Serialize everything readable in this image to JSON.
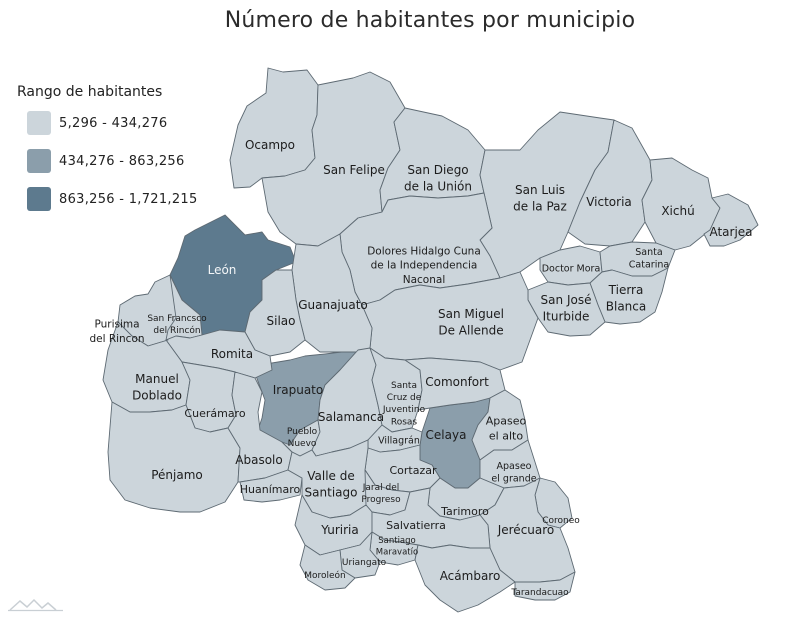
{
  "title": "Número de habitantes por municipio",
  "legend": {
    "title": "Rango de habitantes",
    "items": [
      {
        "label": "5,296 - 434,276",
        "color": "#ccd5db"
      },
      {
        "label": "434,276 - 863,256",
        "color": "#8b9eab"
      },
      {
        "label": "863,256 - 1,721,215",
        "color": "#5d7a8e"
      }
    ]
  },
  "colors": {
    "stroke": "#5e6a73",
    "background": "#ffffff"
  },
  "chart_data": {
    "type": "choropleth",
    "legend_placement": "top-left",
    "classes": [
      "5,296 - 434,276",
      "434,276 - 863,256",
      "863,256 - 1,721,215"
    ],
    "regions": [
      {
        "name": "León",
        "label": "León",
        "class": 2
      },
      {
        "name": "Irapuato",
        "label": "Irapuato",
        "class": 1
      },
      {
        "name": "Celaya",
        "label": "Celaya",
        "class": 1
      },
      {
        "name": "Ocampo",
        "label": "Ocampo",
        "class": 0
      },
      {
        "name": "San Felipe",
        "label": "San Felipe",
        "class": 0
      },
      {
        "name": "San Diego de la Unión",
        "label": "San Diego\nde la Unión",
        "class": 0
      },
      {
        "name": "San Luis de la Paz",
        "label": "San Luis\nde la Paz",
        "class": 0
      },
      {
        "name": "Victoria",
        "label": "Victoria",
        "class": 0
      },
      {
        "name": "Xichú",
        "label": "Xichú",
        "class": 0
      },
      {
        "name": "Atarjea",
        "label": "Atarjea",
        "class": 0
      },
      {
        "name": "Dolores Hidalgo Cuna de la Independencia Nacional",
        "label": "Dolores Hidalgo Cuna\nde la Independencia\nNaconal",
        "class": 0
      },
      {
        "name": "Doctor Mora",
        "label": "Doctor Mora",
        "class": 0
      },
      {
        "name": "Santa Catarina",
        "label": "Santa\nCatarina",
        "class": 0
      },
      {
        "name": "Tierra Blanca",
        "label": "Tierra\nBlanca",
        "class": 0
      },
      {
        "name": "San José Iturbide",
        "label": "San José\nIturbide",
        "class": 0
      },
      {
        "name": "San Miguel De Allende",
        "label": "San Miguel\nDe Allende",
        "class": 0
      },
      {
        "name": "Guanajuato",
        "label": "Guanajuato",
        "class": 0
      },
      {
        "name": "Silao",
        "label": "Silao",
        "class": 0
      },
      {
        "name": "Purísima del Rincon",
        "label": "Purisima\ndel Rincon",
        "class": 0
      },
      {
        "name": "San Francisco del Rincón",
        "label": "San Francsco\ndel Rincón",
        "class": 0
      },
      {
        "name": "Romita",
        "label": "Romita",
        "class": 0
      },
      {
        "name": "Manuel Doblado",
        "label": "Manuel\nDoblado",
        "class": 0
      },
      {
        "name": "Cuerámaro",
        "label": "Cuerámaro",
        "class": 0
      },
      {
        "name": "Pénjamo",
        "label": "Pénjamo",
        "class": 0
      },
      {
        "name": "Abasolo",
        "label": "Abasolo",
        "class": 0
      },
      {
        "name": "Huanímaro",
        "label": "Huanímaro",
        "class": 0
      },
      {
        "name": "Pueblo Nuevo",
        "label": "Pueblo\nNuevo",
        "class": 0
      },
      {
        "name": "Salamanca",
        "label": "Salamanca",
        "class": 0
      },
      {
        "name": "Santa Cruz de Juventino Rosas",
        "label": "Santa\nCruz de\nJuventino\nRosas",
        "class": 0
      },
      {
        "name": "Comonfort",
        "label": "Comonfort",
        "class": 0
      },
      {
        "name": "Villagrán",
        "label": "Villagrán",
        "class": 0
      },
      {
        "name": "Apaseo el alto",
        "label": "Apaseo\nel alto",
        "class": 0
      },
      {
        "name": "Apaseo el grande",
        "label": "Apaseo\nel grande",
        "class": 0
      },
      {
        "name": "Cortazar",
        "label": "Cortazar",
        "class": 0
      },
      {
        "name": "Valle de Santiago",
        "label": "Valle de\nSantiago",
        "class": 0
      },
      {
        "name": "Jaral del Progreso",
        "label": "Jaral del\nProgreso",
        "class": 0
      },
      {
        "name": "Tarimoro",
        "label": "Tarimoro",
        "class": 0
      },
      {
        "name": "Coroneo",
        "label": "Coroneo",
        "class": 0
      },
      {
        "name": "Jerécuaro",
        "label": "Jerécuaro",
        "class": 0
      },
      {
        "name": "Yuriria",
        "label": "Yuriria",
        "class": 0
      },
      {
        "name": "Salvatierra",
        "label": "Salvatierra",
        "class": 0
      },
      {
        "name": "Santiago Maravatío",
        "label": "Santiago\nMaravatío",
        "class": 0
      },
      {
        "name": "Uriangato",
        "label": "Uriangato",
        "class": 0
      },
      {
        "name": "Moroleón",
        "label": "Moroleón",
        "class": 0
      },
      {
        "name": "Acámbaro",
        "label": "Acámbaro",
        "class": 0
      },
      {
        "name": "Tarandacuao",
        "label": "Tarandacuao",
        "class": 0
      }
    ]
  }
}
